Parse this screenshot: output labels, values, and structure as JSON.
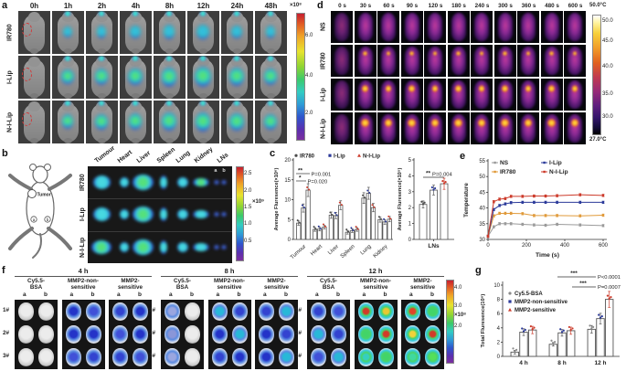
{
  "panels": {
    "a": {
      "label": "a",
      "times": [
        "0h",
        "1h",
        "2h",
        "4h",
        "8h",
        "12h",
        "24h",
        "48h"
      ],
      "rows": [
        "IR780",
        "I-Lip",
        "N-I-Lip"
      ],
      "colorbar": {
        "scale": "×10⁸",
        "ticks": [
          "6.0",
          "4.0",
          "2.0"
        ]
      }
    },
    "d": {
      "label": "d",
      "times": [
        "0 s",
        "30 s",
        "60 s",
        "90 s",
        "120 s",
        "180 s",
        "240 s",
        "300 s",
        "360 s",
        "480 s",
        "600 s"
      ],
      "rows": [
        "NS",
        "IR780",
        "I-Lip",
        "N-I-Lip"
      ],
      "colorbar": {
        "top": "50.0°C",
        "bottom": "27.0°C",
        "ticks": [
          "50.0",
          "45.0",
          "40.0",
          "35.0",
          "30.0"
        ]
      }
    },
    "b": {
      "label": "b",
      "diagram": {
        "tumor": "Tumor",
        "node_a": "a",
        "node_b": "b"
      },
      "organs": [
        "Tumour",
        "Heart",
        "Liver",
        "Spleen",
        "Lung",
        "Kidney",
        "LNs"
      ],
      "rows": [
        "IR780",
        "I-Lip",
        "N-I-Lip"
      ],
      "ln_marks": [
        "a",
        "b"
      ],
      "colorbar": {
        "scale": "×10⁹",
        "ticks": [
          "2.5",
          "2.0",
          "1.5",
          "1.0",
          "0.5"
        ]
      }
    },
    "c": {
      "label": "c"
    },
    "e": {
      "label": "e"
    },
    "f": {
      "label": "f",
      "groups": [
        "4 h",
        "8 h",
        "12 h"
      ],
      "treatments": [
        [
          "Cy5.5-",
          "BSA"
        ],
        [
          "MMP2-non-",
          "sensitive"
        ],
        [
          "MMP2-",
          "sensitive"
        ]
      ],
      "subcols": [
        "a",
        "b"
      ],
      "rows": [
        "1#",
        "2#",
        "3#"
      ],
      "colorbar": {
        "scale": "×10⁸",
        "ticks": [
          "4.0",
          "3.0",
          "2.0"
        ]
      }
    },
    "g": {
      "label": "g"
    }
  },
  "chart_data": [
    {
      "id": "c_main",
      "type": "bar",
      "ylabel": "Average Fluresence(×10⁶)",
      "ylim": [
        0,
        20
      ],
      "yticks": [
        0,
        5,
        10,
        15,
        20
      ],
      "categories": [
        "Tumour",
        "Heart",
        "Liver",
        "Spleen",
        "Lung",
        "Kidney"
      ],
      "series": [
        {
          "name": "IR780",
          "color": "#4a4a4a",
          "values": [
            4.1,
            2.5,
            6.1,
            1.8,
            10.4,
            5.0
          ]
        },
        {
          "name": "I-Lip",
          "color": "#2b3a9a",
          "values": [
            7.9,
            2.6,
            6.0,
            2.2,
            11.6,
            4.4
          ]
        },
        {
          "name": "N-I-Lip",
          "color": "#cc3a2a",
          "values": [
            12.4,
            3.1,
            8.6,
            2.5,
            8.0,
            5.1
          ]
        }
      ],
      "annotations": [
        {
          "stars": "**",
          "p": "P=0.001"
        },
        {
          "stars": "*",
          "p": "P=0.020"
        }
      ],
      "legend_position": "top"
    },
    {
      "id": "c_lns",
      "type": "bar",
      "ylabel": "Average Fluresence(×10⁵)",
      "ylim": [
        0,
        5
      ],
      "yticks": [
        0,
        1,
        2,
        3,
        4,
        5
      ],
      "categories": [
        "LNs"
      ],
      "series": [
        {
          "name": "IR780",
          "color": "#4a4a4a",
          "values": [
            2.2
          ]
        },
        {
          "name": "I-Lip",
          "color": "#2b3a9a",
          "values": [
            3.1
          ]
        },
        {
          "name": "N-I-Lip",
          "color": "#cc3a2a",
          "values": [
            3.5
          ]
        }
      ],
      "annotations": [
        {
          "stars": "**",
          "p": "P=0.004"
        }
      ]
    },
    {
      "id": "e_temp",
      "type": "line",
      "xlabel": "Time (s)",
      "ylabel": "Temperature",
      "xlim": [
        0,
        600
      ],
      "ylim": [
        30,
        55
      ],
      "xticks": [
        0,
        200,
        400,
        600
      ],
      "yticks": [
        30,
        35,
        40,
        45,
        50,
        55
      ],
      "x": [
        0,
        30,
        60,
        90,
        120,
        180,
        240,
        300,
        360,
        480,
        600
      ],
      "series": [
        {
          "name": "NS",
          "color": "#9a9a9a",
          "values": [
            31.0,
            34.0,
            35.0,
            35.0,
            35.0,
            34.8,
            34.6,
            34.5,
            34.8,
            34.6,
            34.4
          ]
        },
        {
          "name": "IR780",
          "color": "#e09a3a",
          "values": [
            31.0,
            37.5,
            38.3,
            38.3,
            38.3,
            38.2,
            37.6,
            37.6,
            37.6,
            37.5,
            37.7
          ]
        },
        {
          "name": "I-Lip",
          "color": "#2b3a9a",
          "values": [
            31.0,
            39.5,
            40.8,
            41.3,
            41.7,
            41.8,
            41.8,
            41.8,
            41.8,
            41.8,
            41.8
          ]
        },
        {
          "name": "N-I-Lip",
          "color": "#cc3a2a",
          "values": [
            31.0,
            42.0,
            42.8,
            43.0,
            43.7,
            43.7,
            43.8,
            43.8,
            43.9,
            44.2,
            44.0
          ]
        }
      ],
      "legend_position": "top"
    },
    {
      "id": "g_total",
      "type": "bar",
      "ylabel": "Total Fluresence(10⁶)",
      "ylim": [
        0,
        10
      ],
      "yticks": [
        0,
        2,
        4,
        6,
        8,
        10
      ],
      "categories": [
        "4 h",
        "8 h",
        "12 h"
      ],
      "series": [
        {
          "name": "Cy5.5-BSA",
          "color": "#8a8a8a",
          "values": [
            0.6,
            1.7,
            3.8
          ]
        },
        {
          "name": "MMP2-non-sensitive",
          "color": "#2b3a9a",
          "values": [
            3.4,
            3.3,
            5.3
          ]
        },
        {
          "name": "MMP2-sensitive",
          "color": "#cc3a2a",
          "values": [
            3.7,
            3.6,
            8.0
          ]
        }
      ],
      "annotations": [
        {
          "stars": "***",
          "p": "P<0.0001"
        },
        {
          "stars": "***",
          "p": "P=0.0007"
        }
      ],
      "legend_position": "left"
    }
  ]
}
